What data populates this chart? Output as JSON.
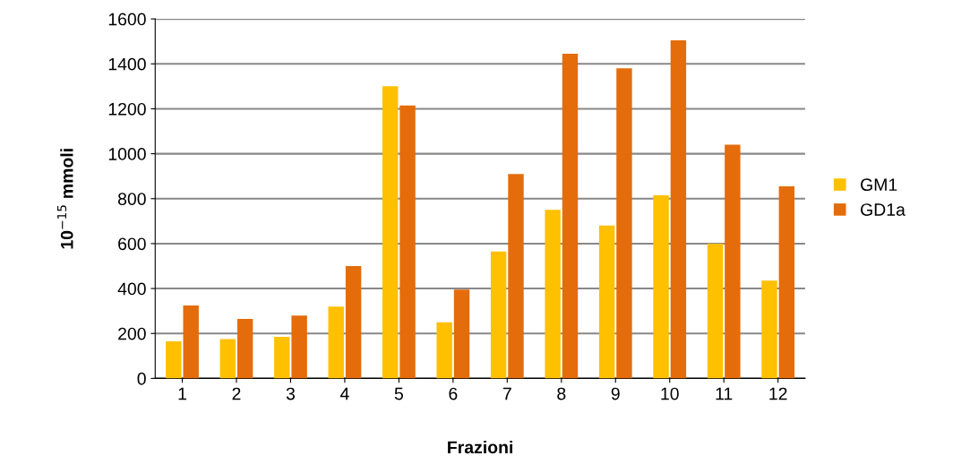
{
  "chart_data": {
    "type": "bar",
    "xlabel": "Frazioni",
    "ylabel": "10$^{−15}$ mmoli",
    "categories": [
      "1",
      "2",
      "3",
      "4",
      "5",
      "6",
      "7",
      "8",
      "9",
      "10",
      "11",
      "12"
    ],
    "series": [
      {
        "name": "GM1",
        "color": "#ffc000",
        "values": [
          165,
          175,
          185,
          320,
          1300,
          250,
          565,
          750,
          680,
          815,
          600,
          435
        ]
      },
      {
        "name": "GD1a",
        "color": "#e46c0a",
        "values": [
          325,
          265,
          280,
          500,
          1215,
          395,
          910,
          1445,
          1380,
          1505,
          1040,
          855
        ]
      }
    ],
    "ylim": [
      0,
      1600
    ],
    "yticks": [
      0,
      200,
      400,
      600,
      800,
      1000,
      1200,
      1400,
      1600
    ],
    "grid": "y",
    "legend": "right"
  }
}
